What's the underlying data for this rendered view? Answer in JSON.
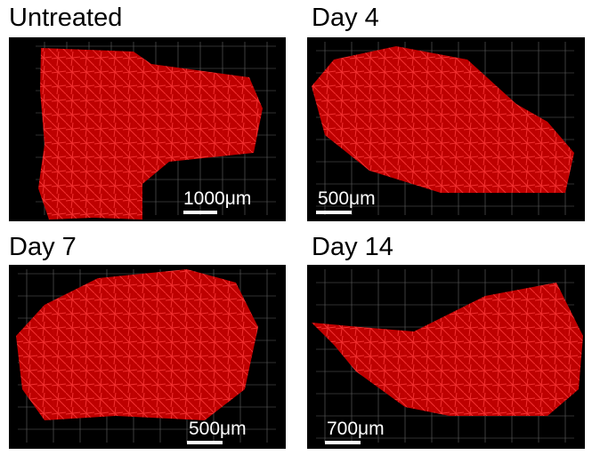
{
  "panels": [
    {
      "label": "Untreated",
      "scale": "1000μm"
    },
    {
      "label": "Day 4",
      "scale": "500μm"
    },
    {
      "label": "Day 7",
      "scale": "500μm"
    },
    {
      "label": "Day 14",
      "scale": "700μm"
    }
  ],
  "colors": {
    "tissue": "#ff1a1a",
    "background": "#000000",
    "grid": "#8c8c8c"
  }
}
